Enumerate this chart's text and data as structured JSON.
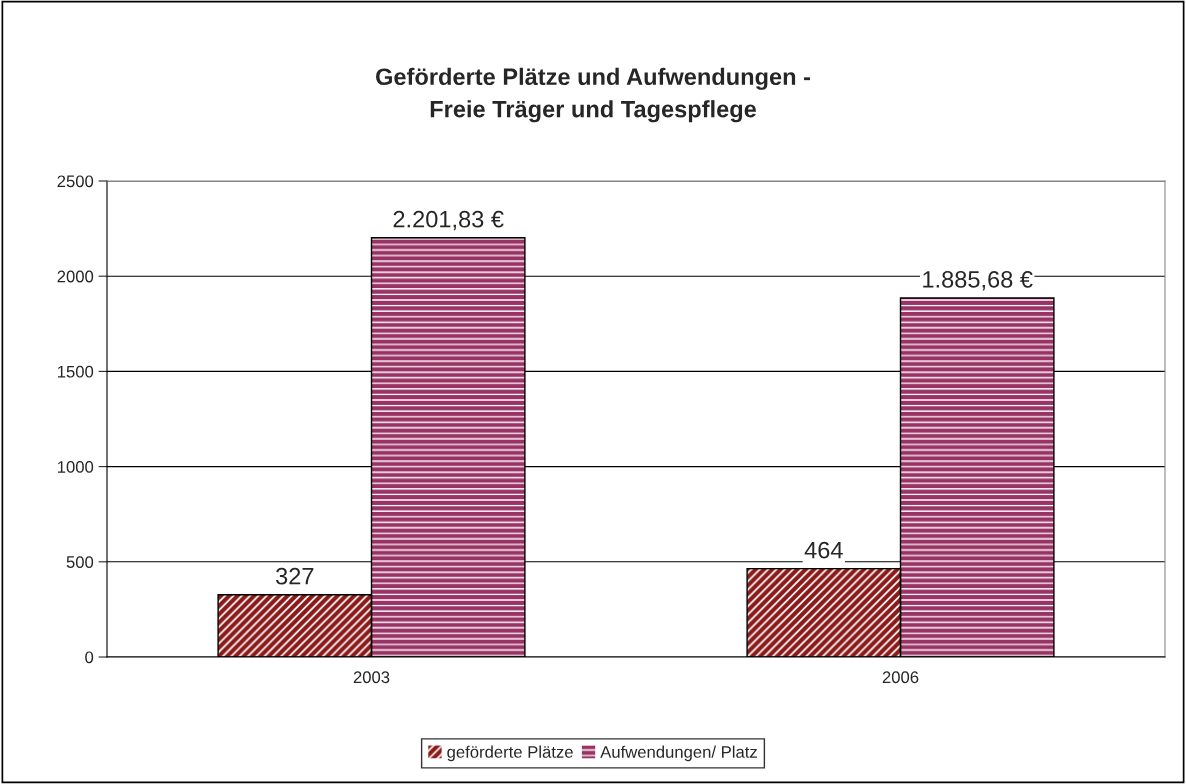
{
  "chart_data": {
    "type": "bar",
    "title": "Geförderte Plätze und Aufwendungen -\nFreie Träger und Tagespflege",
    "categories": [
      "2003",
      "2006"
    ],
    "series": [
      {
        "name": "geförderte Plätze",
        "color": "#8b1a1a",
        "values": [
          327,
          464
        ],
        "value_labels": [
          "327",
          "464"
        ]
      },
      {
        "name": "Aufwendungen/ Platz",
        "color": "#993366",
        "values": [
          2201.83,
          1885.68
        ],
        "value_labels": [
          "2.201,83 €",
          "1.885,68 €"
        ]
      }
    ],
    "ylim": [
      0,
      2500
    ],
    "yticks": [
      0,
      500,
      1000,
      1500,
      2000,
      2500
    ],
    "grid": "y",
    "legend": "bottom"
  }
}
